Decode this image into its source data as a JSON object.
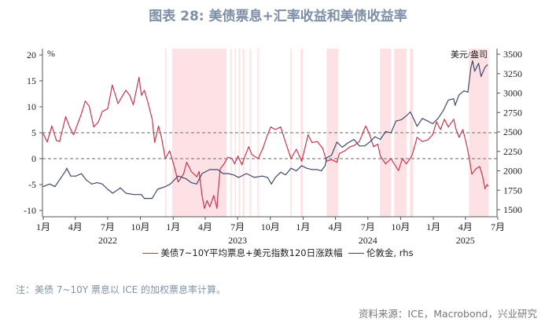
{
  "title": "图表 28: 美债票息+汇率收益和美债收益率",
  "note": "注：美债 7~10Y 票息以 ICE 的加权票息率计算。",
  "source": "资料来源：ICE，Macrobond，兴业研究",
  "chart_data": {
    "type": "line",
    "title": "",
    "x_range": [
      "2022-01-01",
      "2025-07-01"
    ],
    "x_ticks": [
      {
        "date": "2022-01-01",
        "label": "1月"
      },
      {
        "date": "2022-04-01",
        "label": "4月"
      },
      {
        "date": "2022-07-01",
        "label": "7月"
      },
      {
        "date": "2022-10-01",
        "label": "10月"
      },
      {
        "date": "2023-01-01",
        "label": "1月"
      },
      {
        "date": "2023-04-01",
        "label": "4月"
      },
      {
        "date": "2023-07-01",
        "label": "7月"
      },
      {
        "date": "2023-10-01",
        "label": "10月"
      },
      {
        "date": "2024-01-01",
        "label": "1月"
      },
      {
        "date": "2024-04-01",
        "label": "4月"
      },
      {
        "date": "2024-07-01",
        "label": "7月"
      },
      {
        "date": "2024-10-01",
        "label": "10月"
      },
      {
        "date": "2025-01-01",
        "label": "1月"
      },
      {
        "date": "2025-04-01",
        "label": "4月"
      },
      {
        "date": "2025-07-01",
        "label": "7月"
      }
    ],
    "year_labels": [
      {
        "date": "2022-07-01",
        "label": "2022"
      },
      {
        "date": "2023-07-01",
        "label": "2023"
      },
      {
        "date": "2024-07-01",
        "label": "2024"
      },
      {
        "date": "2025-04-01",
        "label": "2025"
      }
    ],
    "left_axis": {
      "unit": "%",
      "ylim": [
        -10,
        20
      ],
      "ticks": [
        -10,
        -5,
        0,
        5,
        10,
        15,
        20
      ]
    },
    "right_axis": {
      "unit": "美元/盎司",
      "ylim": [
        1500,
        3500
      ],
      "ticks": [
        1500,
        1750,
        2000,
        2250,
        2500,
        2750,
        3000,
        3250,
        3500
      ]
    },
    "reference_lines": {
      "axis": "left",
      "values": [
        0,
        5
      ],
      "style": "dashed",
      "color": "#888888"
    },
    "shaded_periods": {
      "color": "#fde1e4",
      "ranges": [
        [
          "2022-12-10",
          "2022-12-12"
        ],
        [
          "2022-12-29",
          "2023-05-31"
        ],
        [
          "2023-06-11",
          "2023-06-13"
        ],
        [
          "2023-06-23",
          "2023-06-25"
        ],
        [
          "2023-07-04",
          "2023-07-06"
        ],
        [
          "2023-07-15",
          "2023-07-20"
        ],
        [
          "2023-08-04",
          "2023-08-06"
        ],
        [
          "2023-08-26",
          "2023-08-28"
        ],
        [
          "2023-11-26",
          "2023-11-28"
        ],
        [
          "2023-12-25",
          "2023-12-31"
        ],
        [
          "2024-03-07",
          "2024-04-09"
        ],
        [
          "2024-08-04",
          "2024-09-04"
        ],
        [
          "2024-09-13",
          "2024-10-18"
        ],
        [
          "2024-10-27",
          "2024-11-05"
        ],
        [
          "2025-04-11",
          "2025-06-05"
        ]
      ]
    },
    "series": [
      {
        "name": "美债7~10Y平均票息+美元指数120日涨跌幅",
        "axis": "left",
        "color": "#c9364b",
        "points": [
          [
            "2022-01-01",
            4.8
          ],
          [
            "2022-01-12",
            3.2
          ],
          [
            "2022-01-25",
            6.3
          ],
          [
            "2022-02-07",
            3.5
          ],
          [
            "2022-02-16",
            3.3
          ],
          [
            "2022-03-05",
            8.1
          ],
          [
            "2022-03-16",
            6.1
          ],
          [
            "2022-03-27",
            4.6
          ],
          [
            "2022-04-07",
            6.6
          ],
          [
            "2022-04-18",
            8.6
          ],
          [
            "2022-04-29",
            11.1
          ],
          [
            "2022-05-10",
            10.1
          ],
          [
            "2022-05-23",
            6.1
          ],
          [
            "2022-06-05",
            7.1
          ],
          [
            "2022-06-16",
            9.1
          ],
          [
            "2022-07-01",
            9.6
          ],
          [
            "2022-07-14",
            14.2
          ],
          [
            "2022-07-23",
            12.2
          ],
          [
            "2022-07-30",
            10.6
          ],
          [
            "2022-08-08",
            11.7
          ],
          [
            "2022-08-21",
            13.2
          ],
          [
            "2022-09-01",
            12.2
          ],
          [
            "2022-09-11",
            10.4
          ],
          [
            "2022-09-27",
            15.7
          ],
          [
            "2022-10-04",
            12.2
          ],
          [
            "2022-10-12",
            13.2
          ],
          [
            "2022-10-23",
            10.6
          ],
          [
            "2022-11-03",
            7.6
          ],
          [
            "2022-11-10",
            3.1
          ],
          [
            "2022-11-21",
            6.3
          ],
          [
            "2022-11-29",
            4.1
          ],
          [
            "2022-12-10",
            0.0
          ],
          [
            "2022-12-22",
            1.5
          ],
          [
            "2023-01-04",
            -1.5
          ],
          [
            "2023-01-15",
            -4.5
          ],
          [
            "2023-01-30",
            -3.0
          ],
          [
            "2023-02-08",
            -0.7
          ],
          [
            "2023-02-21",
            -2.5
          ],
          [
            "2023-03-08",
            -3.5
          ],
          [
            "2023-03-15",
            -2.5
          ],
          [
            "2023-03-23",
            -7.1
          ],
          [
            "2023-03-30",
            -9.6
          ],
          [
            "2023-04-06",
            -8.1
          ],
          [
            "2023-04-14",
            -9.3
          ],
          [
            "2023-04-25",
            -7.1
          ],
          [
            "2023-05-04",
            -9.6
          ],
          [
            "2023-05-07",
            -6.6
          ],
          [
            "2023-05-13",
            -2.0
          ],
          [
            "2023-05-24",
            -1.0
          ],
          [
            "2023-06-04",
            0.3
          ],
          [
            "2023-06-15",
            0.0
          ],
          [
            "2023-06-23",
            -1.0
          ],
          [
            "2023-07-02",
            0.5
          ],
          [
            "2023-07-13",
            -1.2
          ],
          [
            "2023-07-22",
            0.5
          ],
          [
            "2023-08-01",
            2.3
          ],
          [
            "2023-08-10",
            0.8
          ],
          [
            "2023-08-28",
            0.0
          ],
          [
            "2023-09-10",
            2.0
          ],
          [
            "2023-09-23",
            4.6
          ],
          [
            "2023-10-02",
            6.1
          ],
          [
            "2023-10-15",
            5.6
          ],
          [
            "2023-10-30",
            6.1
          ],
          [
            "2023-11-13",
            3.1
          ],
          [
            "2023-11-28",
            0.0
          ],
          [
            "2023-12-13",
            1.8
          ],
          [
            "2023-12-28",
            -0.5
          ],
          [
            "2024-01-15",
            4.6
          ],
          [
            "2024-01-26",
            3.1
          ],
          [
            "2024-02-10",
            3.3
          ],
          [
            "2024-02-25",
            2.0
          ],
          [
            "2024-03-07",
            -0.5
          ],
          [
            "2024-03-21",
            -0.2
          ],
          [
            "2024-04-05",
            -0.7
          ],
          [
            "2024-04-12",
            1.0
          ],
          [
            "2024-04-27",
            1.5
          ],
          [
            "2024-05-12",
            2.3
          ],
          [
            "2024-05-23",
            2.5
          ],
          [
            "2024-06-07",
            3.3
          ],
          [
            "2024-06-25",
            6.3
          ],
          [
            "2024-07-06",
            4.6
          ],
          [
            "2024-07-17",
            2.3
          ],
          [
            "2024-07-29",
            2.8
          ],
          [
            "2024-08-05",
            0.5
          ],
          [
            "2024-08-20",
            -1.0
          ],
          [
            "2024-09-04",
            0.0
          ],
          [
            "2024-09-10",
            -0.7
          ],
          [
            "2024-09-25",
            -2.3
          ],
          [
            "2024-10-06",
            0.0
          ],
          [
            "2024-10-17",
            -1.0
          ],
          [
            "2024-11-01",
            0.5
          ],
          [
            "2024-11-08",
            2.0
          ],
          [
            "2024-11-16",
            4.1
          ],
          [
            "2024-12-01",
            3.3
          ],
          [
            "2024-12-16",
            3.6
          ],
          [
            "2024-12-30",
            4.6
          ],
          [
            "2025-01-10",
            7.1
          ],
          [
            "2025-01-21",
            5.6
          ],
          [
            "2025-02-01",
            7.6
          ],
          [
            "2025-02-12",
            6.1
          ],
          [
            "2025-02-27",
            7.6
          ],
          [
            "2025-03-06",
            5.6
          ],
          [
            "2025-03-14",
            4.1
          ],
          [
            "2025-03-25",
            5.6
          ],
          [
            "2025-04-05",
            2.5
          ],
          [
            "2025-04-12",
            0.0
          ],
          [
            "2025-04-19",
            -3.0
          ],
          [
            "2025-04-30",
            -2.0
          ],
          [
            "2025-05-11",
            -1.5
          ],
          [
            "2025-05-19",
            -3.3
          ],
          [
            "2025-05-26",
            -5.8
          ],
          [
            "2025-06-01",
            -5.0
          ],
          [
            "2025-06-04",
            -5.3
          ]
        ]
      },
      {
        "name": "伦敦金, rhs",
        "axis": "right",
        "color": "#3e4a6c",
        "points": [
          [
            "2022-01-01",
            1797
          ],
          [
            "2022-01-19",
            1830
          ],
          [
            "2022-02-03",
            1797
          ],
          [
            "2022-02-18",
            1898
          ],
          [
            "2022-03-05",
            1999
          ],
          [
            "2022-03-08",
            2033
          ],
          [
            "2022-03-19",
            1932
          ],
          [
            "2022-04-03",
            1932
          ],
          [
            "2022-04-18",
            1965
          ],
          [
            "2022-05-02",
            1881
          ],
          [
            "2022-05-17",
            1830
          ],
          [
            "2022-06-01",
            1847
          ],
          [
            "2022-06-16",
            1830
          ],
          [
            "2022-07-01",
            1763
          ],
          [
            "2022-07-15",
            1712
          ],
          [
            "2022-08-06",
            1780
          ],
          [
            "2022-08-21",
            1712
          ],
          [
            "2022-09-12",
            1695
          ],
          [
            "2022-10-04",
            1695
          ],
          [
            "2022-10-12",
            1645
          ],
          [
            "2022-11-03",
            1645
          ],
          [
            "2022-11-18",
            1763
          ],
          [
            "2022-12-10",
            1797
          ],
          [
            "2022-12-24",
            1830
          ],
          [
            "2023-01-15",
            1932
          ],
          [
            "2023-02-06",
            1898
          ],
          [
            "2023-02-21",
            1847
          ],
          [
            "2023-03-08",
            1830
          ],
          [
            "2023-03-23",
            1965
          ],
          [
            "2023-04-14",
            2016
          ],
          [
            "2023-05-06",
            2016
          ],
          [
            "2023-05-21",
            1965
          ],
          [
            "2023-06-04",
            1965
          ],
          [
            "2023-06-19",
            1948
          ],
          [
            "2023-07-04",
            1915
          ],
          [
            "2023-07-26",
            1965
          ],
          [
            "2023-08-17",
            1915
          ],
          [
            "2023-09-08",
            1932
          ],
          [
            "2023-09-23",
            1915
          ],
          [
            "2023-10-04",
            1830
          ],
          [
            "2023-10-15",
            1915
          ],
          [
            "2023-10-30",
            1982
          ],
          [
            "2023-11-13",
            1948
          ],
          [
            "2023-11-28",
            2033
          ],
          [
            "2023-12-13",
            1999
          ],
          [
            "2023-12-28",
            2067
          ],
          [
            "2024-01-11",
            2033
          ],
          [
            "2024-01-26",
            2016
          ],
          [
            "2024-02-10",
            2016
          ],
          [
            "2024-02-21",
            1999
          ],
          [
            "2024-03-03",
            2067
          ],
          [
            "2024-03-07",
            2168
          ],
          [
            "2024-03-21",
            2201
          ],
          [
            "2024-04-05",
            2370
          ],
          [
            "2024-04-20",
            2303
          ],
          [
            "2024-05-04",
            2353
          ],
          [
            "2024-05-23",
            2404
          ],
          [
            "2024-06-07",
            2320
          ],
          [
            "2024-06-22",
            2320
          ],
          [
            "2024-07-06",
            2370
          ],
          [
            "2024-07-21",
            2438
          ],
          [
            "2024-08-05",
            2404
          ],
          [
            "2024-08-20",
            2505
          ],
          [
            "2024-09-04",
            2488
          ],
          [
            "2024-09-18",
            2640
          ],
          [
            "2024-10-03",
            2657
          ],
          [
            "2024-10-17",
            2707
          ],
          [
            "2024-10-28",
            2758
          ],
          [
            "2024-11-08",
            2657
          ],
          [
            "2024-11-16",
            2573
          ],
          [
            "2024-12-01",
            2674
          ],
          [
            "2024-12-16",
            2640
          ],
          [
            "2024-12-30",
            2606
          ],
          [
            "2025-01-14",
            2674
          ],
          [
            "2025-01-29",
            2775
          ],
          [
            "2025-02-12",
            2910
          ],
          [
            "2025-02-27",
            2927
          ],
          [
            "2025-03-03",
            2842
          ],
          [
            "2025-03-14",
            2977
          ],
          [
            "2025-03-28",
            3028
          ],
          [
            "2025-04-08",
            3011
          ],
          [
            "2025-04-16",
            3314
          ],
          [
            "2025-04-21",
            3416
          ],
          [
            "2025-04-27",
            3281
          ],
          [
            "2025-05-08",
            3382
          ],
          [
            "2025-05-15",
            3213
          ],
          [
            "2025-05-26",
            3331
          ],
          [
            "2025-06-02",
            3365
          ]
        ]
      }
    ]
  }
}
